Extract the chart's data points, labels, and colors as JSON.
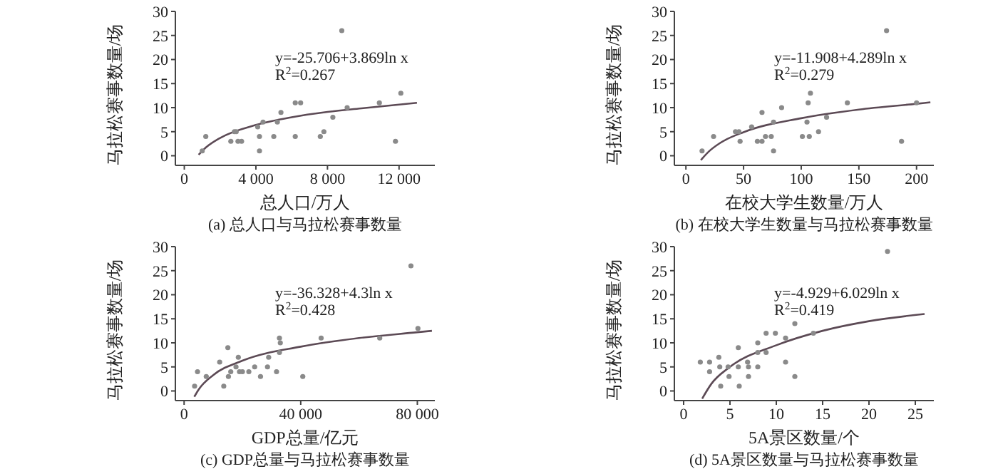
{
  "chart_data": [
    {
      "type": "scatter",
      "title": "(a) 总人口与马拉松赛事数量",
      "xlabel": "总人口/万人",
      "ylabel": "马拉松赛事数量/场",
      "line_style": "solid",
      "xlim": [
        -500,
        14000
      ],
      "xticks": [
        0,
        {
          "value": 4000,
          "label": "4 000"
        },
        {
          "value": 8000,
          "label": "8 000"
        },
        {
          "value": 12000,
          "label": "12 000"
        }
      ],
      "ylim": [
        -2,
        30
      ],
      "yticks": [
        0,
        5,
        10,
        15,
        20,
        25,
        30
      ],
      "annotations": [
        "y=-25.706+3.869ln x",
        "R$^{2}$=0.267"
      ],
      "series": [
        {
          "type": "scatter",
          "marker": "circle",
          "color": "#8a8a8a",
          "x": [
            1000,
            1200,
            2600,
            2800,
            2900,
            3000,
            3200,
            4100,
            4200,
            4200,
            4400,
            5000,
            5200,
            5400,
            6200,
            6200,
            6500,
            7600,
            7800,
            8300,
            8800,
            9100,
            10900,
            11800,
            12100
          ],
          "values": [
            1,
            4,
            3,
            5,
            5,
            3,
            3,
            6,
            4,
            1,
            7,
            4,
            7,
            9,
            11,
            4,
            11,
            4,
            5,
            8,
            26,
            10,
            11,
            3,
            13
          ]
        },
        {
          "type": "line",
          "color": "#5c4a55",
          "x": [
            800,
            1200,
            2000,
            4000,
            6000,
            8000,
            10000,
            13000
          ],
          "values": [
            0.2,
            1.7,
            3.7,
            6.4,
            8.0,
            9.1,
            9.9,
            11.0
          ]
        }
      ]
    },
    {
      "type": "scatter",
      "title": "(b) 在校大学生数量与马拉松赛事数量",
      "xlabel": "在校大学生数量/万人",
      "ylabel": "马拉松赛事数量/场",
      "line_style": "solid",
      "xlim": [
        -10,
        215
      ],
      "xticks": [
        0,
        50,
        100,
        150,
        200
      ],
      "ylim": [
        -2,
        30
      ],
      "yticks": [
        0,
        5,
        10,
        15,
        20,
        25,
        30
      ],
      "annotations": [
        "y=-11.908+4.289ln x",
        "R$^{2}$=0.279"
      ],
      "series": [
        {
          "type": "scatter",
          "marker": "circle",
          "color": "#8a8a8a",
          "x": [
            14,
            24,
            43,
            46,
            47,
            57,
            62,
            66,
            66,
            69,
            74,
            76,
            76,
            83,
            101,
            105,
            106,
            108,
            107,
            115,
            122,
            140,
            174,
            187,
            200
          ],
          "values": [
            1,
            4,
            5,
            5,
            3,
            6,
            3,
            3,
            9,
            4,
            4,
            1,
            7,
            10,
            4,
            7,
            11,
            13,
            4,
            5,
            8,
            11,
            26,
            3,
            11
          ]
        },
        {
          "type": "line",
          "color": "#5c4a55",
          "x": [
            13,
            20,
            30,
            50,
            100,
            150,
            200,
            212
          ],
          "values": [
            -0.9,
            0.9,
            2.7,
            4.9,
            7.8,
            9.6,
            10.8,
            11.1
          ]
        }
      ]
    },
    {
      "type": "scatter",
      "title": "(c) GDP总量与马拉松赛事数量",
      "xlabel": "GDP总量/亿元",
      "ylabel": "马拉松赛事数量/场",
      "line_style": "solid",
      "xlim": [
        -3000,
        86000
      ],
      "xticks": [
        0,
        {
          "value": 40000,
          "label": "40 000"
        },
        {
          "value": 80000,
          "label": "80 000"
        }
      ],
      "ylim": [
        -2,
        30
      ],
      "yticks": [
        0,
        5,
        10,
        15,
        20,
        25,
        30
      ],
      "annotations": [
        "y=-36.328+4.3ln x",
        "R$^{2}$=0.428"
      ],
      "series": [
        {
          "type": "scatter",
          "marker": "circle",
          "color": "#8a8a8a",
          "x": [
            3600,
            4600,
            7600,
            12200,
            13600,
            15000,
            15200,
            16000,
            17800,
            18600,
            19000,
            20000,
            22200,
            24200,
            26200,
            28600,
            29000,
            31700,
            32700,
            32700,
            33000,
            40700,
            47000,
            67100,
            77800,
            80200
          ],
          "values": [
            1,
            4,
            3,
            6,
            1,
            9,
            3,
            4,
            5,
            7,
            4,
            4,
            4,
            5,
            3,
            5,
            7,
            4,
            8,
            11,
            10,
            3,
            11,
            11,
            26,
            13
          ]
        },
        {
          "type": "line",
          "color": "#5c4a55",
          "x": [
            3500,
            5000,
            10000,
            20000,
            40000,
            60000,
            80000,
            85000
          ],
          "values": [
            -1.2,
            0.3,
            3.3,
            6.3,
            9.2,
            11.0,
            12.2,
            12.5
          ]
        }
      ]
    },
    {
      "type": "scatter",
      "title": "(d) 5A景区数量与马拉松赛事数量",
      "xlabel": "5A景区数量/个",
      "ylabel": "马拉松赛事数量/场",
      "line_style": "solid",
      "xlim": [
        -1,
        27
      ],
      "xticks": [
        0,
        5,
        10,
        15,
        20,
        25
      ],
      "ylim": [
        -2,
        30
      ],
      "yticks": [
        0,
        5,
        10,
        15,
        20,
        25,
        30
      ],
      "annotations": [
        "y=-4.929+6.029ln x",
        "R$^{2}$=0.419"
      ],
      "series": [
        {
          "type": "scatter",
          "marker": "circle",
          "color": "#8a8a8a",
          "x": [
            1.8,
            2.8,
            2.8,
            3.8,
            3.9,
            4,
            4.8,
            4.9,
            5.9,
            5.9,
            6,
            6.9,
            7,
            7,
            8,
            8,
            8,
            8.9,
            8.9,
            9.9,
            11,
            11,
            12,
            12,
            14,
            22
          ],
          "values": [
            6,
            6,
            4,
            7,
            5,
            1,
            5,
            3,
            9,
            5,
            1,
            6,
            3,
            5,
            10,
            8,
            5,
            8,
            12,
            12,
            11,
            6,
            14,
            3,
            12,
            29
          ]
        },
        {
          "type": "line",
          "color": "#5c4a55",
          "x": [
            2,
            3,
            5,
            10,
            15,
            20,
            26
          ],
          "values": [
            -1.6,
            1.5,
            5.0,
            9.5,
            12.5,
            14.5,
            16.0
          ]
        }
      ]
    }
  ]
}
